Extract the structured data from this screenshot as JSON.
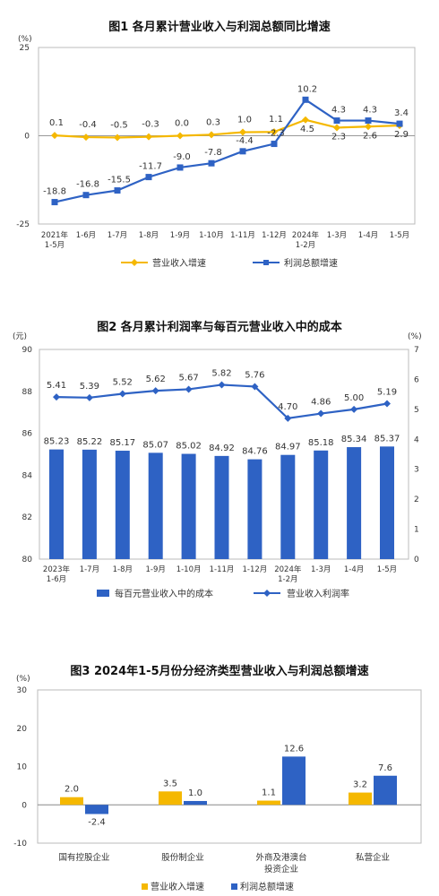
{
  "chart_data": [
    {
      "type": "line",
      "title": "图1 各月累计营业收入与利润总额同比增速",
      "y_unit": "(%)",
      "ylim": [
        -25,
        25
      ],
      "y_ticks": [
        "25",
        "0",
        "-25"
      ],
      "categories": [
        "2021年 1-5月",
        "1-6月",
        "1-7月",
        "1-8月",
        "1-9月",
        "1-10月",
        "1-11月",
        "1-12月",
        "2024年 1-2月",
        "1-3月",
        "1-4月",
        "1-5月"
      ],
      "series": [
        {
          "name": "营业收入增速",
          "color": "#f5b800",
          "marker": "diamond",
          "values": [
            0.1,
            -0.4,
            -0.5,
            -0.3,
            0.0,
            0.3,
            1.0,
            1.1,
            4.5,
            2.3,
            2.6,
            2.9
          ],
          "labels": [
            "0.1",
            "-0.4",
            "-0.5",
            "-0.3",
            "0.0",
            "0.3",
            "1.0",
            "1.1",
            "4.5",
            "2.3",
            "2.6",
            "2.9"
          ]
        },
        {
          "name": "利润总额增速",
          "color": "#2e62c4",
          "marker": "square",
          "values": [
            -18.8,
            -16.8,
            -15.5,
            -11.7,
            -9.0,
            -7.8,
            -4.4,
            -2.3,
            10.2,
            4.3,
            4.3,
            3.4
          ],
          "labels": [
            "-18.8",
            "-16.8",
            "-15.5",
            "-11.7",
            "-9.0",
            "-7.8",
            "-4.4",
            "-2.3",
            "10.2",
            "4.3",
            "4.3",
            "3.4"
          ]
        }
      ],
      "legend": "bottom"
    },
    {
      "type": "bar",
      "title": "图2 各月累计利润率与每百元营业收入中的成本",
      "y_unit_left": "(元)",
      "y_unit_right": "(%)",
      "ylim_left": [
        80,
        90
      ],
      "ylim_right": [
        0,
        7
      ],
      "y_ticks_left": [
        "80",
        "82",
        "84",
        "86",
        "88",
        "90"
      ],
      "y_ticks_right": [
        "0",
        "1",
        "2",
        "3",
        "4",
        "5",
        "6",
        "7"
      ],
      "categories": [
        "2023年 1-6月",
        "1-7月",
        "1-8月",
        "1-9月",
        "1-10月",
        "1-11月",
        "1-12月",
        "2024年 1-2月",
        "1-3月",
        "1-4月",
        "1-5月"
      ],
      "series": [
        {
          "name": "每百元营业收入中的成本",
          "type": "bar",
          "axis": "left",
          "color": "#2e62c4",
          "values": [
            85.23,
            85.22,
            85.17,
            85.07,
            85.02,
            84.92,
            84.76,
            84.97,
            85.18,
            85.34,
            85.37
          ],
          "labels": [
            "85.23",
            "85.22",
            "85.17",
            "85.07",
            "85.02",
            "84.92",
            "84.76",
            "84.97",
            "85.18",
            "85.34",
            "85.37"
          ]
        },
        {
          "name": "营业收入利润率",
          "type": "line",
          "axis": "right",
          "color": "#2e62c4",
          "values": [
            5.41,
            5.39,
            5.52,
            5.62,
            5.67,
            5.82,
            5.76,
            4.7,
            4.86,
            5.0,
            5.19
          ],
          "labels": [
            "5.41",
            "5.39",
            "5.52",
            "5.62",
            "5.67",
            "5.82",
            "5.76",
            "4.70",
            "4.86",
            "5.00",
            "5.19"
          ]
        }
      ],
      "legend": "bottom"
    },
    {
      "type": "bar",
      "title": "图3 2024年1-5月份分经济类型营业收入与利润总额增速",
      "y_unit": "(%)",
      "ylim": [
        -10,
        30
      ],
      "y_ticks": [
        "30",
        "20",
        "10",
        "0",
        "-10"
      ],
      "categories": [
        "国有控股企业",
        "股份制企业",
        "外商及港澳台 投资企业",
        "私营企业"
      ],
      "series": [
        {
          "name": "营业收入增速",
          "color": "#f5b800",
          "values": [
            2.0,
            3.5,
            1.1,
            3.2
          ],
          "labels": [
            "2.0",
            "3.5",
            "1.1",
            "3.2"
          ]
        },
        {
          "name": "利润总额增速",
          "color": "#2e62c4",
          "values": [
            -2.4,
            1.0,
            12.6,
            7.6
          ],
          "labels": [
            "-2.4",
            "1.0",
            "12.6",
            "7.6"
          ]
        }
      ],
      "legend": "bottom"
    }
  ]
}
